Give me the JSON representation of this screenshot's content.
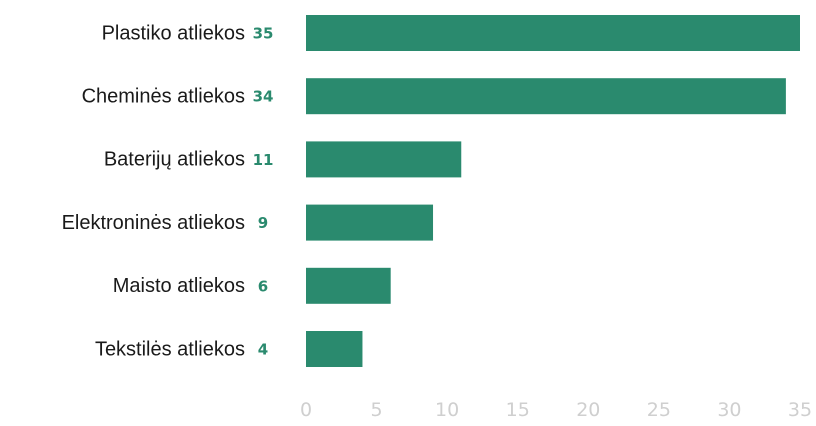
{
  "chart_data": {
    "type": "bar",
    "orientation": "horizontal",
    "categories": [
      "Plastiko atliekos",
      "Cheminės atliekos",
      "Baterijų atliekos",
      "Elektroninės atliekos",
      "Maisto atliekos",
      "Tekstilės atliekos"
    ],
    "values": [
      35,
      34,
      11,
      9,
      6,
      4
    ],
    "value_labels": [
      "35",
      "34",
      "11",
      "9",
      "6",
      "4"
    ],
    "title": "",
    "xlabel": "",
    "ylabel": "",
    "xlim": [
      0,
      35
    ],
    "x_ticks": [
      "0",
      "5",
      "10",
      "15",
      "20",
      "25",
      "30",
      "35"
    ],
    "grid": false,
    "legend": "none",
    "bar_color": "#2a8a6e",
    "value_label_color": "#2a8a6e",
    "tick_label_color": "#cfcfcf"
  }
}
